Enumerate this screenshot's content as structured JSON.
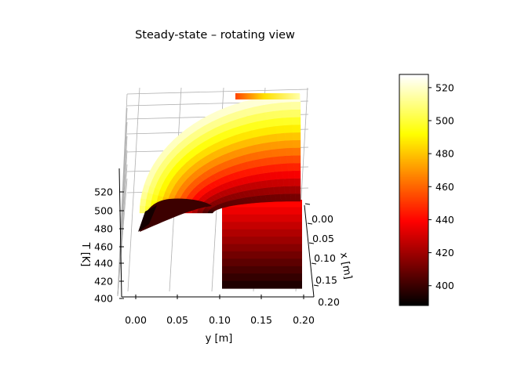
{
  "chart_data": {
    "type": "surface3d",
    "title": "Steady-state – rotating view",
    "xlabel": "x [m]",
    "ylabel": "y [m]",
    "zlabel": "T [K]",
    "x_ticks": [
      "0.00",
      "0.05",
      "0.10",
      "0.15",
      "0.20"
    ],
    "y_ticks": [
      "0.00",
      "0.05",
      "0.10",
      "0.15",
      "0.20"
    ],
    "z_ticks": [
      "400",
      "420",
      "440",
      "460",
      "480",
      "500",
      "520"
    ],
    "xlim": [
      0.0,
      0.2
    ],
    "ylim": [
      0.0,
      0.2
    ],
    "zlim": [
      400,
      530
    ],
    "colormap": "hot",
    "grid": true,
    "colorbar": {
      "min": 388,
      "max": 528,
      "ticks": [
        "400",
        "420",
        "440",
        "460",
        "480",
        "500",
        "520"
      ],
      "tick_values": [
        400,
        420,
        440,
        460,
        480,
        500,
        520
      ]
    },
    "temperature_range": [
      388,
      528
    ]
  }
}
